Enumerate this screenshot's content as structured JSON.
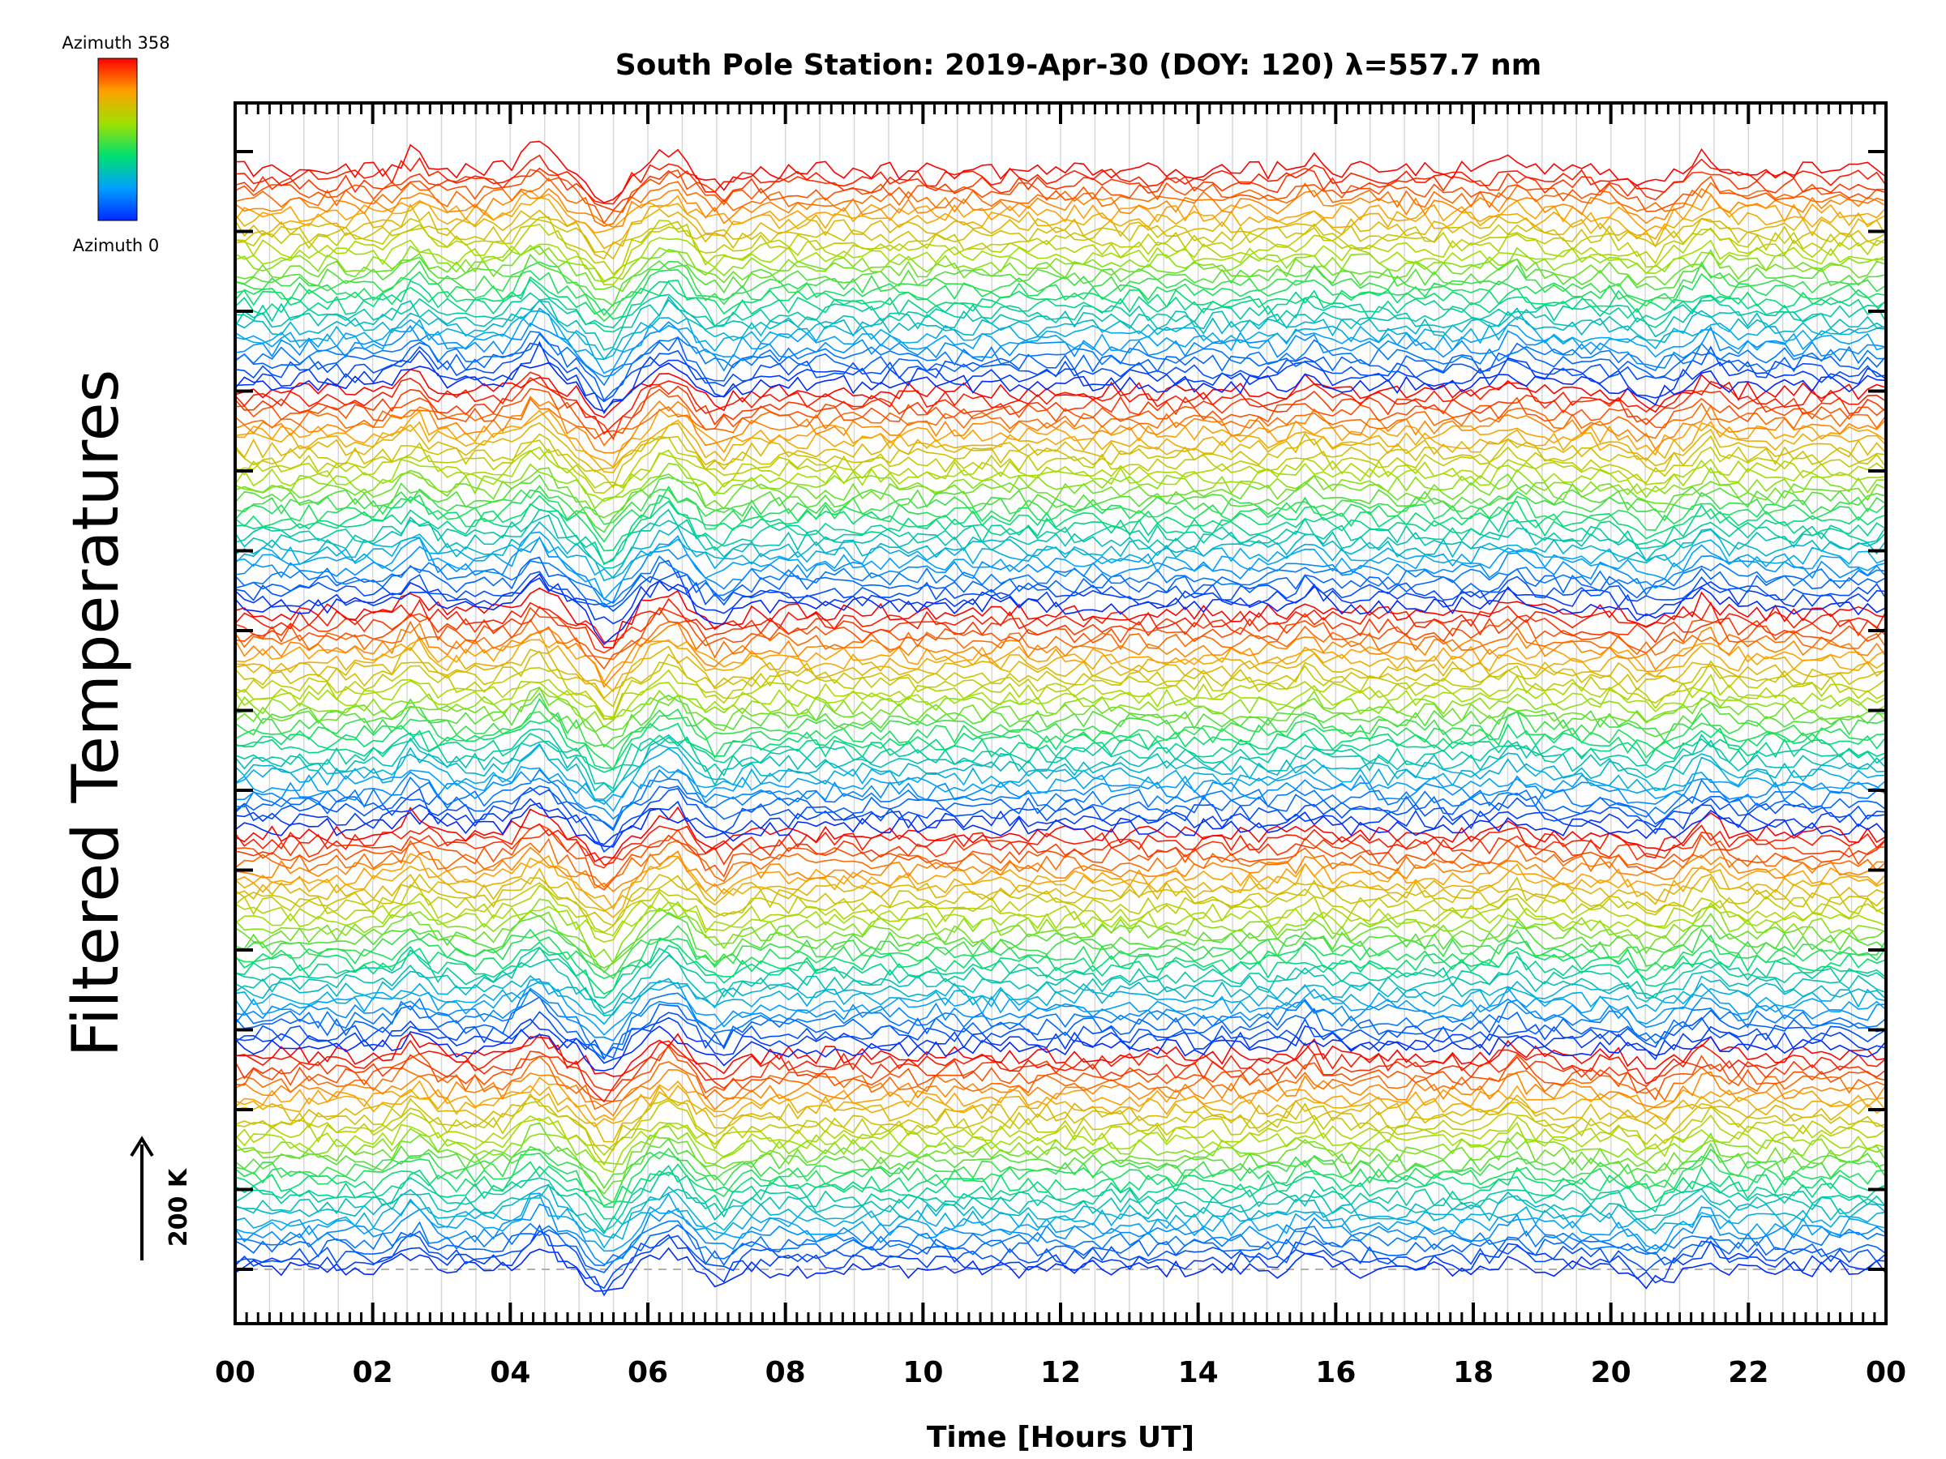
{
  "chart_data": {
    "type": "line",
    "title": "South Pole Station: 2019-Apr-30 (DOY: 120) λ=557.7 nm",
    "xlabel": "Time [Hours UT]",
    "ylabel": "Filtered Temperatures",
    "xlim": [
      0,
      24
    ],
    "x_ticks": [
      "00",
      "02",
      "04",
      "06",
      "08",
      "10",
      "12",
      "14",
      "16",
      "18",
      "20",
      "22",
      "00"
    ],
    "y_tick_count": 15,
    "scale_bar": "200 K",
    "colorbar": {
      "top_label": "Azimuth 358",
      "bottom_label": "Azimuth 0",
      "colormap": "rainbow (blue to red)"
    },
    "series_count": 155,
    "grid": true,
    "colors": {
      "axis": "#000000",
      "grid": "#d8d8d8",
      "baseline": "#b0b0b0"
    }
  }
}
